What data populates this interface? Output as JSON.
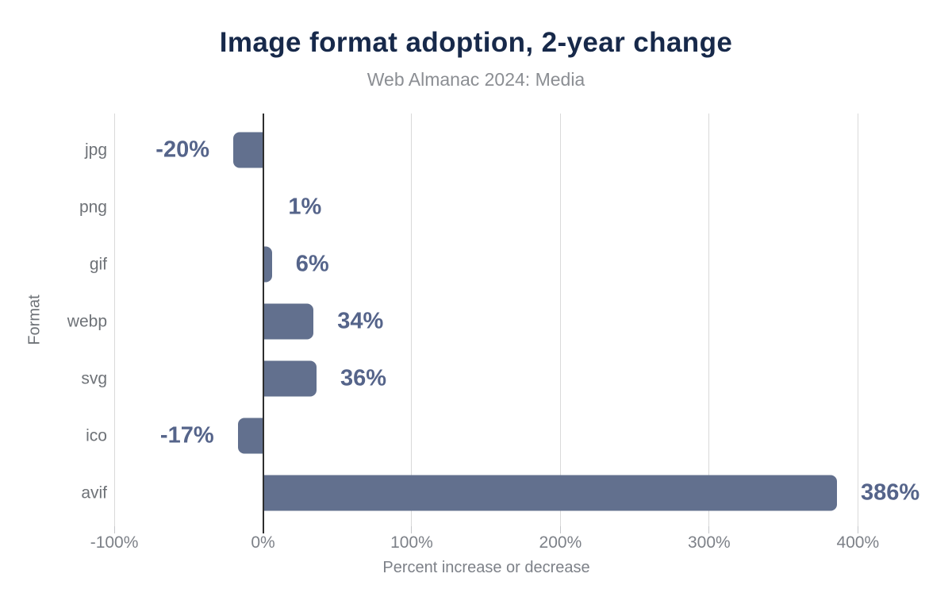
{
  "title": "Image format adoption, 2-year change",
  "subtitle": "Web Almanac 2024: Media",
  "colors": {
    "background": "#ffffff",
    "bar": "#62708e",
    "value_label": "#55648a",
    "title_text": "#17294a",
    "subtitle_text": "#8b8e93",
    "axis_text": "#7d8188",
    "category_text": "#6e7277",
    "gridline": "#d9d9d9",
    "zero_line": "#2e2e2e"
  },
  "chart_data": {
    "type": "bar",
    "orientation": "horizontal",
    "title": "Image format adoption, 2-year change",
    "subtitle": "Web Almanac 2024: Media",
    "xlabel": "Percent increase or decrease",
    "ylabel": "Format",
    "categories": [
      "jpg",
      "png",
      "gif",
      "webp",
      "svg",
      "ico",
      "avif"
    ],
    "values": [
      -20,
      1,
      6,
      34,
      36,
      -17,
      386
    ],
    "value_labels": [
      "-20%",
      "1%",
      "6%",
      "34%",
      "36%",
      "-17%",
      "386%"
    ],
    "xlim": [
      -100,
      435
    ],
    "xticks": [
      -100,
      0,
      100,
      200,
      300,
      400
    ],
    "xtick_labels": [
      "-100%",
      "0%",
      "100%",
      "200%",
      "300%",
      "400%"
    ],
    "grid": "vertical",
    "legend": "none"
  }
}
